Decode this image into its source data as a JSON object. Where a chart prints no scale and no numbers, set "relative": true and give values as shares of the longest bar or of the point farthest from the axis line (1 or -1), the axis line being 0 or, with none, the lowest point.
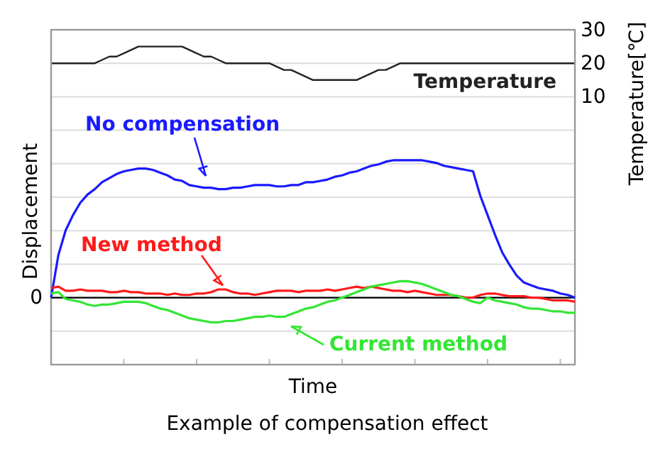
{
  "chart_data": [
    {
      "type": "line",
      "ylabel": "Temperature[℃]",
      "categories": [
        null,
        null,
        null,
        null,
        null,
        null,
        null,
        null,
        null,
        null,
        null,
        null,
        null,
        null,
        null,
        null,
        null,
        null,
        null,
        null,
        null,
        null,
        null,
        null,
        null,
        null,
        null,
        null,
        null,
        null,
        null,
        null,
        null,
        null,
        null,
        null,
        null,
        null,
        null,
        null,
        null,
        null,
        null,
        null,
        null,
        null,
        null,
        null,
        null,
        null,
        null,
        null,
        null,
        null,
        null,
        null,
        null,
        null,
        null,
        null,
        null,
        null,
        null,
        null,
        null,
        null,
        null,
        null,
        null,
        null,
        null,
        null,
        null
      ],
      "ylim": [
        -70,
        30
      ],
      "yticks": [
        {
          "value": -60,
          "label": null
        },
        {
          "value": -50,
          "label": null
        },
        {
          "value": -40,
          "label": null
        },
        {
          "value": -30,
          "label": null
        },
        {
          "value": -20,
          "label": null
        },
        {
          "value": -10,
          "label": null
        },
        {
          "value": 0,
          "label": null
        },
        10,
        20,
        30
      ],
      "grid": true,
      "series": [
        {
          "name": "Temperature",
          "color": "#222222",
          "values": [
            20,
            20,
            20,
            20,
            20,
            20,
            20,
            21,
            22,
            22,
            23,
            24,
            25,
            25,
            25,
            25,
            25,
            25,
            25,
            24,
            23,
            22,
            22,
            21,
            20,
            20,
            20,
            20,
            20,
            20,
            20,
            19,
            18,
            18,
            17,
            16,
            15,
            15,
            15,
            15,
            15,
            15,
            15,
            16,
            17,
            18,
            18,
            19,
            20,
            20,
            20,
            20,
            20,
            20,
            20,
            20,
            20,
            20,
            20,
            20,
            20,
            20,
            20,
            20,
            20,
            20,
            20,
            20,
            20,
            20,
            20,
            20,
            20
          ]
        }
      ]
    },
    {
      "type": "line",
      "title": "Example of compensation effect",
      "xlabel": "Time",
      "ylabel": "Displacement",
      "relative": true,
      "categories": [
        null,
        null,
        null,
        null,
        null,
        null,
        null,
        null,
        null,
        null,
        null,
        null,
        null,
        null,
        null,
        null,
        null,
        null,
        null,
        null,
        null,
        null,
        null,
        null,
        null,
        null,
        null,
        null,
        null,
        null,
        null,
        null,
        null,
        null,
        null,
        null,
        null,
        null,
        null,
        null,
        null,
        null,
        null,
        null,
        null,
        null,
        null,
        null,
        null,
        null,
        null,
        null,
        null,
        null,
        null,
        null,
        null,
        null,
        null,
        null,
        null,
        null,
        null,
        null,
        null,
        null,
        null,
        null,
        null,
        null,
        null,
        null,
        null
      ],
      "ref_lines": [
        {
          "axis": "y",
          "value": 0,
          "label": "0",
          "color": "#000000"
        }
      ],
      "series": [
        {
          "name": "No compensation",
          "color": "#1a1aff",
          "values": [
            0,
            0.31,
            0.49,
            0.6,
            0.69,
            0.75,
            0.79,
            0.84,
            0.87,
            0.9,
            0.92,
            0.93,
            0.94,
            0.94,
            0.93,
            0.91,
            0.89,
            0.86,
            0.85,
            0.82,
            0.81,
            0.8,
            0.8,
            0.79,
            0.79,
            0.8,
            0.8,
            0.81,
            0.82,
            0.82,
            0.82,
            0.81,
            0.81,
            0.82,
            0.82,
            0.84,
            0.84,
            0.85,
            0.86,
            0.88,
            0.89,
            0.91,
            0.92,
            0.94,
            0.96,
            0.97,
            0.99,
            1,
            1,
            1,
            1,
            1,
            0.99,
            0.98,
            0.96,
            0.95,
            0.94,
            0.93,
            0.92,
            0.74,
            0.6,
            0.46,
            0.33,
            0.24,
            0.16,
            0.11,
            0.09,
            0.07,
            0.06,
            0.05,
            0.03,
            0.02,
            0
          ]
        },
        {
          "name": "New method",
          "color": "#ff1a1a",
          "values": [
            0.07,
            0.08,
            0.05,
            0.05,
            0.06,
            0.05,
            0.05,
            0.05,
            0.04,
            0.04,
            0.05,
            0.04,
            0.04,
            0.03,
            0.03,
            0.03,
            0.02,
            0.03,
            0.02,
            0.02,
            0.03,
            0.03,
            0.04,
            0.06,
            0.06,
            0.04,
            0.03,
            0.03,
            0.02,
            0.03,
            0.04,
            0.05,
            0.05,
            0.05,
            0.04,
            0.05,
            0.05,
            0.05,
            0.06,
            0.05,
            0.06,
            0.07,
            0.08,
            0.07,
            0.08,
            0.07,
            0.06,
            0.05,
            0.05,
            0.04,
            0.05,
            0.04,
            0.03,
            0.02,
            0.02,
            0.02,
            0.01,
            0,
            0,
            0.02,
            0.03,
            0.03,
            0.02,
            0.01,
            0.01,
            0.01,
            0,
            0,
            -0.01,
            -0.02,
            -0.02,
            -0.02,
            -0.03
          ]
        },
        {
          "name": "Current method",
          "color": "#33e633",
          "values": [
            0.03,
            0.04,
            -0.01,
            -0.02,
            -0.03,
            -0.05,
            -0.06,
            -0.05,
            -0.05,
            -0.04,
            -0.03,
            -0.03,
            -0.03,
            -0.04,
            -0.06,
            -0.08,
            -0.09,
            -0.11,
            -0.13,
            -0.15,
            -0.16,
            -0.17,
            -0.18,
            -0.18,
            -0.17,
            -0.17,
            -0.16,
            -0.15,
            -0.14,
            -0.14,
            -0.13,
            -0.14,
            -0.14,
            -0.12,
            -0.1,
            -0.08,
            -0.07,
            -0.05,
            -0.03,
            -0.02,
            0,
            0.02,
            0.04,
            0.06,
            0.08,
            0.09,
            0.1,
            0.11,
            0.12,
            0.12,
            0.11,
            0.1,
            0.08,
            0.06,
            0.04,
            0.02,
            0.01,
            -0.01,
            -0.03,
            -0.04,
            0,
            -0.02,
            -0.03,
            -0.04,
            -0.05,
            -0.07,
            -0.08,
            -0.08,
            -0.09,
            -0.1,
            -0.1,
            -0.11,
            -0.11
          ]
        }
      ]
    }
  ]
}
